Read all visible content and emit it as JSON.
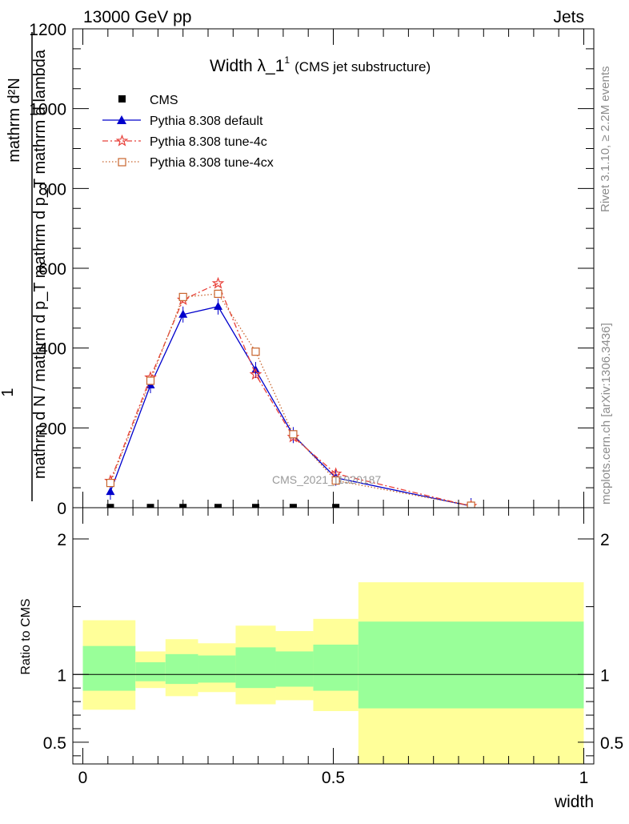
{
  "header": {
    "left": "13000 GeV pp",
    "right": "Jets"
  },
  "side_text": {
    "rivet": "Rivet 3.1.10, ≥ 2.2M events",
    "mcplots": "mcplots.cern.ch [arXiv:1306.3436]"
  },
  "watermark": "CMS_2021_I1920187",
  "chart_data": [
    {
      "type": "line",
      "title_main": "Width λ_1",
      "title_sup": "1",
      "title_sub": "(CMS jet substructure)",
      "ylabel_top": "1",
      "ylabel_num": "mathrm d²N",
      "ylabel_den": "mathrm d N / mathrm d p_T mathrm d p_T mathrm d lambda",
      "ylim": [
        0,
        1200
      ],
      "xlim": [
        -0.02,
        1.02
      ],
      "yticks": [
        0,
        200,
        400,
        600,
        800,
        1000,
        1200
      ],
      "ytick_labels": [
        "0",
        "200",
        "400",
        "600",
        "800",
        "1000",
        "1200"
      ],
      "legend_placement": "top-left",
      "series": [
        {
          "name": "CMS",
          "color": "#000000",
          "marker": "square",
          "x": [
            0.055,
            0.135,
            0.2,
            0.27,
            0.345,
            0.42,
            0.505
          ],
          "y": [
            0.5,
            0.5,
            0.5,
            0.5,
            0.5,
            0.5,
            0.5
          ]
        },
        {
          "name": "Pythia 8.308 default",
          "color": "#0000cc",
          "marker": "triangle",
          "x": [
            0.055,
            0.135,
            0.2,
            0.27,
            0.345,
            0.42,
            0.505,
            0.775
          ],
          "y": [
            40,
            307,
            484,
            504,
            345,
            182,
            75,
            4
          ]
        },
        {
          "name": "Pythia 8.308 tune-4c",
          "color": "#e8413a",
          "marker": "star",
          "x": [
            0.055,
            0.135,
            0.2,
            0.27,
            0.345,
            0.42,
            0.505,
            0.775
          ],
          "y": [
            67,
            326,
            521,
            562,
            334,
            177,
            85,
            4
          ]
        },
        {
          "name": "Pythia 8.308 tune-4cx",
          "color": "#c8642d",
          "marker": "open-square",
          "x": [
            0.055,
            0.135,
            0.2,
            0.27,
            0.345,
            0.42,
            0.505,
            0.775
          ],
          "y": [
            62,
            318,
            528,
            536,
            391,
            184,
            68,
            5
          ]
        }
      ]
    },
    {
      "type": "area",
      "ylabel": "Ratio to CMS",
      "xlabel": "width",
      "ylim": [
        0.34,
        2.23
      ],
      "xlim": [
        -0.02,
        1.02
      ],
      "xticks": [
        0,
        0.5,
        1
      ],
      "xtick_labels": [
        "0",
        "0.5",
        "1"
      ],
      "yticks": [
        0.5,
        1,
        2
      ],
      "ytick_labels": [
        "0.5",
        "1",
        "2"
      ],
      "reference_line": 1,
      "bands": {
        "x_edges": [
          0.0,
          0.105,
          0.165,
          0.23,
          0.305,
          0.385,
          0.46,
          0.55,
          1.0
        ],
        "outer_low": [
          0.74,
          0.9,
          0.84,
          0.87,
          0.78,
          0.81,
          0.73,
          0.34
        ],
        "outer_high": [
          1.4,
          1.17,
          1.26,
          1.23,
          1.36,
          1.32,
          1.41,
          1.68
        ],
        "inner_low": [
          0.88,
          0.95,
          0.93,
          0.94,
          0.9,
          0.91,
          0.88,
          0.75
        ],
        "inner_high": [
          1.21,
          1.09,
          1.15,
          1.14,
          1.2,
          1.17,
          1.22,
          1.39
        ],
        "outer_color": "#ffff99",
        "inner_color": "#99ff99"
      }
    }
  ]
}
